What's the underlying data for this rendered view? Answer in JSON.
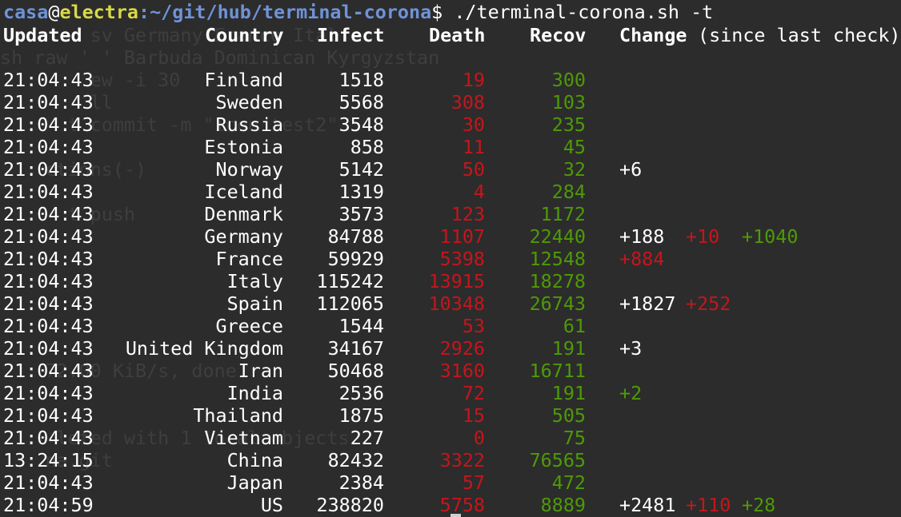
{
  "prompt": {
    "user": "casa",
    "at": "@",
    "host": "electra",
    "path": ":~/git/hub/terminal-corona",
    "command": "$ ./terminal-corona.sh -t"
  },
  "header": {
    "updated": "Updated",
    "country": "Country",
    "infect": "Infect",
    "death": "Death",
    "recov": "Recov",
    "change": "Change",
    "change_suffix": "(since last check)"
  },
  "ghost_lines": [
    "        sv Germany France Ital",
    "sh raw ' ' Barbuda Dominican Kyrgyzstan",
    "        ew -i 30",
    "        ll",
    "      t commit -m \"icon test2\"",
    "",
    "    ctions(-)",
    "",
    "      t push",
    "",
    "",
    "",
    "",
    "",
    "",
    "    72.00 KiB/s, done.",
    "",
    "",
    "     leted with 1 local objects",
    "    na.git"
  ],
  "colors": {
    "background": "#2c2c2c",
    "text": "#ffffff",
    "death": "#c4161c",
    "recov": "#4e9a06",
    "prompt_user": "#6f93d8",
    "prompt_host": "#d8d849"
  },
  "rows": [
    {
      "time": "21:04:43",
      "country": "Finland",
      "infect": "1518",
      "death": "19",
      "recov": "300",
      "change": [
        "",
        "",
        ""
      ]
    },
    {
      "time": "21:04:43",
      "country": "Sweden",
      "infect": "5568",
      "death": "308",
      "recov": "103",
      "change": [
        "",
        "",
        ""
      ]
    },
    {
      "time": "21:04:43",
      "country": "Russia",
      "infect": "3548",
      "death": "30",
      "recov": "235",
      "change": [
        "",
        "",
        ""
      ]
    },
    {
      "time": "21:04:43",
      "country": "Estonia",
      "infect": "858",
      "death": "11",
      "recov": "45",
      "change": [
        "",
        "",
        ""
      ]
    },
    {
      "time": "21:04:43",
      "country": "Norway",
      "infect": "5142",
      "death": "50",
      "recov": "32",
      "change": [
        "+6",
        "",
        ""
      ]
    },
    {
      "time": "21:04:43",
      "country": "Iceland",
      "infect": "1319",
      "death": "4",
      "recov": "284",
      "change": [
        "",
        "",
        ""
      ]
    },
    {
      "time": "21:04:43",
      "country": "Denmark",
      "infect": "3573",
      "death": "123",
      "recov": "1172",
      "change": [
        "",
        "",
        ""
      ]
    },
    {
      "time": "21:04:43",
      "country": "Germany",
      "infect": "84788",
      "death": "1107",
      "recov": "22440",
      "change": [
        "+188",
        "+10",
        "+1040"
      ]
    },
    {
      "time": "21:04:43",
      "country": "France",
      "infect": "59929",
      "death": "5398",
      "recov": "12548",
      "change": [
        "",
        "",
        ""
      ],
      "change_red_first": "+884"
    },
    {
      "time": "21:04:43",
      "country": "Italy",
      "infect": "115242",
      "death": "13915",
      "recov": "18278",
      "change": [
        "",
        "",
        ""
      ]
    },
    {
      "time": "21:04:43",
      "country": "Spain",
      "infect": "112065",
      "death": "10348",
      "recov": "26743",
      "change": [
        "+1827",
        "+252",
        ""
      ]
    },
    {
      "time": "21:04:43",
      "country": "Greece",
      "infect": "1544",
      "death": "53",
      "recov": "61",
      "change": [
        "",
        "",
        ""
      ]
    },
    {
      "time": "21:04:43",
      "country": "United Kingdom",
      "infect": "34167",
      "death": "2926",
      "recov": "191",
      "change": [
        "+3",
        "",
        ""
      ]
    },
    {
      "time": "21:04:43",
      "country": "Iran",
      "infect": "50468",
      "death": "3160",
      "recov": "16711",
      "change": [
        "",
        "",
        ""
      ]
    },
    {
      "time": "21:04:43",
      "country": "India",
      "infect": "2536",
      "death": "72",
      "recov": "191",
      "change": [
        "",
        "",
        ""
      ],
      "change_green_first": "+2"
    },
    {
      "time": "21:04:43",
      "country": "Thailand",
      "infect": "1875",
      "death": "15",
      "recov": "505",
      "change": [
        "",
        "",
        ""
      ]
    },
    {
      "time": "21:04:43",
      "country": "Vietnam",
      "infect": "227",
      "death": "0",
      "recov": "75",
      "change": [
        "",
        "",
        ""
      ]
    },
    {
      "time": "13:24:15",
      "country": "China",
      "infect": "82432",
      "death": "3322",
      "recov": "76565",
      "change": [
        "",
        "",
        ""
      ]
    },
    {
      "time": "21:04:43",
      "country": "Japan",
      "infect": "2384",
      "death": "57",
      "recov": "472",
      "change": [
        "",
        "",
        ""
      ]
    },
    {
      "time": "21:04:59",
      "country": "US",
      "infect": "238820",
      "death": "5758",
      "recov": "8889",
      "change": [
        "+2481",
        "+110",
        "+28"
      ]
    }
  ]
}
